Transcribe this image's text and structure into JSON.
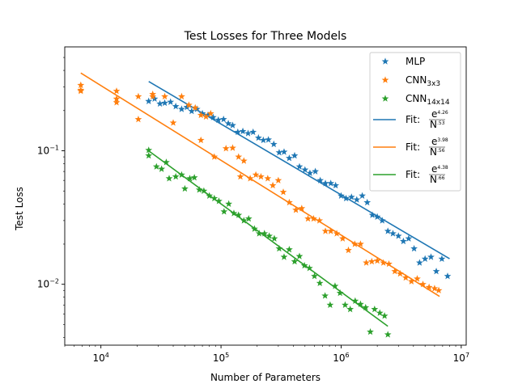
{
  "chart_data": {
    "type": "scatter",
    "title": "Test Losses for Three Models",
    "xlabel": "Number of Parameters",
    "ylabel": "Test Loss",
    "xscale": "log",
    "yscale": "log",
    "xlim": [
      5000,
      11000000
    ],
    "ylim": [
      0.0035,
      0.6
    ],
    "x_ticks": [
      {
        "value": 10000,
        "base": "10",
        "exp": "4"
      },
      {
        "value": 100000,
        "base": "10",
        "exp": "5"
      },
      {
        "value": 1000000,
        "base": "10",
        "exp": "6"
      },
      {
        "value": 10000000,
        "base": "10",
        "exp": "7"
      }
    ],
    "y_ticks": [
      {
        "value": 0.01,
        "base": "10",
        "exp": "−2"
      },
      {
        "value": 0.1,
        "base": "10",
        "exp": "−1"
      }
    ],
    "grid": false,
    "legend_position": "upper-right",
    "colors": {
      "mlp": "#1f77b4",
      "cnn3": "#ff7f0e",
      "cnn14": "#2ca02c"
    },
    "series": [
      {
        "name": "MLP",
        "name_sub": "",
        "color": "#1f77b4",
        "marker": "star",
        "points": [
          [
            25000,
            0.235
          ],
          [
            28000,
            0.245
          ],
          [
            31000,
            0.225
          ],
          [
            34000,
            0.228
          ],
          [
            38000,
            0.232
          ],
          [
            42000,
            0.215
          ],
          [
            47000,
            0.205
          ],
          [
            52000,
            0.212
          ],
          [
            57000,
            0.198
          ],
          [
            63000,
            0.205
          ],
          [
            70000,
            0.19
          ],
          [
            78000,
            0.185
          ],
          [
            86000,
            0.178
          ],
          [
            95000,
            0.17
          ],
          [
            105000,
            0.172
          ],
          [
            115000,
            0.16
          ],
          [
            125000,
            0.155
          ],
          [
            138000,
            0.138
          ],
          [
            152000,
            0.14
          ],
          [
            168000,
            0.135
          ],
          [
            185000,
            0.138
          ],
          [
            205000,
            0.125
          ],
          [
            225000,
            0.12
          ],
          [
            248000,
            0.121
          ],
          [
            275000,
            0.112
          ],
          [
            305000,
            0.097
          ],
          [
            335000,
            0.098
          ],
          [
            370000,
            0.088
          ],
          [
            410000,
            0.092
          ],
          [
            450000,
            0.076
          ],
          [
            500000,
            0.072
          ],
          [
            550000,
            0.068
          ],
          [
            610000,
            0.07
          ],
          [
            670000,
            0.06
          ],
          [
            740000,
            0.057
          ],
          [
            820000,
            0.057
          ],
          [
            900000,
            0.055
          ],
          [
            1000000,
            0.046
          ],
          [
            1100000,
            0.044
          ],
          [
            1220000,
            0.045
          ],
          [
            1350000,
            0.043
          ],
          [
            1500000,
            0.046
          ],
          [
            1650000,
            0.041
          ],
          [
            1820000,
            0.033
          ],
          [
            2000000,
            0.032
          ],
          [
            2200000,
            0.03
          ],
          [
            2450000,
            0.025
          ],
          [
            2700000,
            0.024
          ],
          [
            3000000,
            0.023
          ],
          [
            3300000,
            0.021
          ],
          [
            3650000,
            0.022
          ],
          [
            4050000,
            0.0185
          ],
          [
            4500000,
            0.0145
          ],
          [
            5000000,
            0.0155
          ],
          [
            5600000,
            0.016
          ],
          [
            6200000,
            0.0125
          ],
          [
            6900000,
            0.0155
          ],
          [
            7700000,
            0.0115
          ]
        ],
        "fit": {
          "label_prefix": "Fit: ",
          "num": "e",
          "num_exp": "4.26",
          "den": "N",
          "den_exp": ".53",
          "a": 4.26,
          "b": 0.53,
          "x_range": [
            25000,
            8000000
          ]
        }
      },
      {
        "name": "CNN",
        "name_sub": "3x3",
        "color": "#ff7f0e",
        "marker": "star",
        "points": [
          [
            6800,
            0.31
          ],
          [
            6800,
            0.285
          ],
          [
            6800,
            0.28
          ],
          [
            13500,
            0.28
          ],
          [
            13500,
            0.245
          ],
          [
            13500,
            0.23
          ],
          [
            20500,
            0.255
          ],
          [
            20500,
            0.172
          ],
          [
            27000,
            0.265
          ],
          [
            27000,
            0.255
          ],
          [
            34000,
            0.255
          ],
          [
            40000,
            0.162
          ],
          [
            47000,
            0.255
          ],
          [
            54000,
            0.22
          ],
          [
            61000,
            0.21
          ],
          [
            68000,
            0.185
          ],
          [
            75000,
            0.18
          ],
          [
            82000,
            0.19
          ],
          [
            68000,
            0.12
          ],
          [
            88000,
            0.09
          ],
          [
            110000,
            0.104
          ],
          [
            125000,
            0.105
          ],
          [
            140000,
            0.09
          ],
          [
            155000,
            0.084
          ],
          [
            145000,
            0.064
          ],
          [
            175000,
            0.062
          ],
          [
            195000,
            0.066
          ],
          [
            215000,
            0.064
          ],
          [
            245000,
            0.062
          ],
          [
            270000,
            0.055
          ],
          [
            300000,
            0.06
          ],
          [
            330000,
            0.049
          ],
          [
            370000,
            0.041
          ],
          [
            420000,
            0.036
          ],
          [
            470000,
            0.037
          ],
          [
            530000,
            0.031
          ],
          [
            590000,
            0.031
          ],
          [
            660000,
            0.03
          ],
          [
            740000,
            0.025
          ],
          [
            820000,
            0.025
          ],
          [
            920000,
            0.024
          ],
          [
            1030000,
            0.022
          ],
          [
            1150000,
            0.018
          ],
          [
            1300000,
            0.02
          ],
          [
            1450000,
            0.02
          ],
          [
            1620000,
            0.0145
          ],
          [
            1800000,
            0.0148
          ],
          [
            2000000,
            0.015
          ],
          [
            2250000,
            0.0145
          ],
          [
            2500000,
            0.0142
          ],
          [
            2800000,
            0.0125
          ],
          [
            3100000,
            0.012
          ],
          [
            3450000,
            0.0112
          ],
          [
            3850000,
            0.0105
          ],
          [
            4300000,
            0.011
          ],
          [
            4800000,
            0.01
          ],
          [
            5400000,
            0.0095
          ],
          [
            6000000,
            0.0093
          ],
          [
            6500000,
            0.009
          ]
        ],
        "fit": {
          "label_prefix": "Fit: ",
          "num": "e",
          "num_exp": "3.98",
          "den": "N",
          "den_exp": ".56",
          "a": 3.98,
          "b": 0.56,
          "x_range": [
            6800,
            6600000
          ]
        }
      },
      {
        "name": "CNN",
        "name_sub": "14x14",
        "color": "#2ca02c",
        "marker": "star",
        "points": [
          [
            25000,
            0.101
          ],
          [
            25000,
            0.092
          ],
          [
            29000,
            0.076
          ],
          [
            32000,
            0.073
          ],
          [
            35000,
            0.082
          ],
          [
            37000,
            0.062
          ],
          [
            42000,
            0.064
          ],
          [
            47000,
            0.066
          ],
          [
            50000,
            0.052
          ],
          [
            55000,
            0.062
          ],
          [
            60000,
            0.063
          ],
          [
            66000,
            0.051
          ],
          [
            72000,
            0.05
          ],
          [
            80000,
            0.046
          ],
          [
            88000,
            0.044
          ],
          [
            96000,
            0.042
          ],
          [
            106000,
            0.035
          ],
          [
            116000,
            0.04
          ],
          [
            128000,
            0.034
          ],
          [
            140000,
            0.033
          ],
          [
            155000,
            0.03
          ],
          [
            170000,
            0.031
          ],
          [
            190000,
            0.026
          ],
          [
            208000,
            0.024
          ],
          [
            230000,
            0.024
          ],
          [
            252000,
            0.023
          ],
          [
            278000,
            0.022
          ],
          [
            305000,
            0.0185
          ],
          [
            335000,
            0.016
          ],
          [
            370000,
            0.0182
          ],
          [
            410000,
            0.0148
          ],
          [
            450000,
            0.0162
          ],
          [
            495000,
            0.0138
          ],
          [
            545000,
            0.0132
          ],
          [
            600000,
            0.0115
          ],
          [
            665000,
            0.0102
          ],
          [
            735000,
            0.0082
          ],
          [
            810000,
            0.007
          ],
          [
            890000,
            0.0097
          ],
          [
            980000,
            0.0086
          ],
          [
            1080000,
            0.007
          ],
          [
            1190000,
            0.0065
          ],
          [
            1310000,
            0.0075
          ],
          [
            1450000,
            0.0071
          ],
          [
            1600000,
            0.0067
          ],
          [
            1750000,
            0.0044
          ],
          [
            1900000,
            0.0065
          ],
          [
            2100000,
            0.0061
          ],
          [
            2300000,
            0.0058
          ],
          [
            2450000,
            0.0042
          ]
        ],
        "fit": {
          "label_prefix": "Fit: ",
          "num": "e",
          "num_exp": "4.38",
          "den": "N",
          "den_exp": ".66",
          "a": 4.38,
          "b": 0.66,
          "x_range": [
            25000,
            2450000
          ]
        }
      }
    ]
  }
}
